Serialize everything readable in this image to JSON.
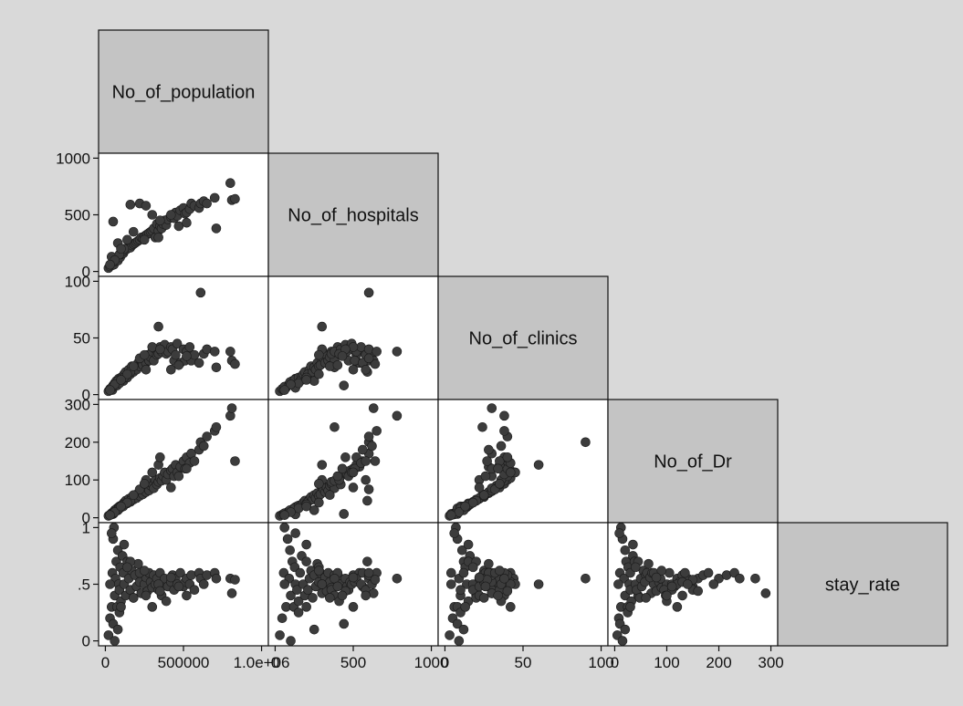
{
  "chart_data": {
    "type": "scatter",
    "kind": "scatterplot-matrix-lower",
    "variables": [
      {
        "name": "No_of_population",
        "range": [
          0,
          1000000
        ]
      },
      {
        "name": "No_of_hospitals",
        "range": [
          0,
          1000
        ]
      },
      {
        "name": "No_of_clinics",
        "range": [
          0,
          100
        ]
      },
      {
        "name": "No_of_Dr",
        "range": [
          0,
          300
        ]
      },
      {
        "name": "stay_rate",
        "range": [
          0,
          1
        ]
      }
    ],
    "x_axes": [
      {
        "variable": "No_of_population",
        "ticks": [
          0,
          500000,
          1000000
        ],
        "tick_labels": [
          "0",
          "500000",
          "1.0e+06"
        ]
      },
      {
        "variable": "No_of_hospitals",
        "ticks": [
          0,
          500,
          1000
        ],
        "tick_labels": [
          "0",
          "500",
          "1000"
        ]
      },
      {
        "variable": "No_of_clinics",
        "ticks": [
          0,
          50,
          100
        ],
        "tick_labels": [
          "0",
          "50",
          "100"
        ]
      },
      {
        "variable": "No_of_Dr",
        "ticks": [
          0,
          100,
          200,
          300
        ],
        "tick_labels": [
          "0",
          "100",
          "200",
          "300"
        ]
      }
    ],
    "y_axes": [
      {
        "variable": "No_of_hospitals",
        "ticks": [
          0,
          500,
          1000
        ],
        "tick_labels": [
          "0",
          "500",
          "1000"
        ]
      },
      {
        "variable": "No_of_clinics",
        "ticks": [
          0,
          50,
          100
        ],
        "tick_labels": [
          "0",
          "50",
          "100"
        ]
      },
      {
        "variable": "No_of_Dr",
        "ticks": [
          0,
          100,
          200,
          300
        ],
        "tick_labels": [
          "0",
          "100",
          "200",
          "300"
        ]
      },
      {
        "variable": "stay_rate",
        "ticks": [
          0,
          0.5,
          1
        ],
        "tick_labels": [
          "0",
          ".5",
          "1"
        ]
      }
    ],
    "data": {
      "No_of_population": [
        20000,
        30000,
        40000,
        45000,
        50000,
        55000,
        60000,
        65000,
        70000,
        75000,
        80000,
        85000,
        90000,
        95000,
        100000,
        110000,
        115000,
        120000,
        130000,
        140000,
        150000,
        160000,
        170000,
        180000,
        190000,
        200000,
        210000,
        220000,
        230000,
        240000,
        250000,
        260000,
        270000,
        280000,
        290000,
        300000,
        310000,
        320000,
        330000,
        340000,
        350000,
        360000,
        370000,
        380000,
        390000,
        400000,
        420000,
        430000,
        440000,
        450000,
        460000,
        480000,
        500000,
        510000,
        520000,
        540000,
        550000,
        570000,
        600000,
        610000,
        630000,
        650000,
        700000,
        710000,
        800000,
        810000,
        830000,
        50000,
        80000,
        120000,
        160000,
        40000,
        90000,
        140000,
        220000,
        260000,
        300000,
        340000,
        60000,
        180000,
        250000,
        350000,
        420000,
        470000,
        520000,
        30000,
        100000
      ],
      "No_of_hospitals": [
        30,
        45,
        70,
        55,
        80,
        60,
        100,
        90,
        110,
        120,
        95,
        130,
        140,
        125,
        150,
        170,
        160,
        180,
        190,
        200,
        220,
        210,
        230,
        240,
        250,
        260,
        270,
        280,
        300,
        290,
        310,
        320,
        330,
        340,
        350,
        360,
        380,
        300,
        420,
        360,
        400,
        380,
        420,
        450,
        410,
        460,
        480,
        500,
        470,
        520,
        490,
        540,
        560,
        510,
        520,
        550,
        600,
        580,
        560,
        600,
        620,
        600,
        650,
        380,
        780,
        630,
        640,
        440,
        250,
        200,
        590,
        130,
        150,
        280,
        600,
        580,
        500,
        300,
        100,
        350,
        280,
        450,
        500,
        400,
        430,
        60,
        200
      ],
      "No_of_clinics": [
        3,
        5,
        6,
        4,
        8,
        7,
        10,
        9,
        12,
        8,
        11,
        14,
        10,
        13,
        15,
        16,
        12,
        18,
        20,
        15,
        22,
        18,
        25,
        20,
        24,
        22,
        28,
        25,
        30,
        26,
        32,
        28,
        35,
        30,
        33,
        38,
        30,
        40,
        35,
        36,
        42,
        38,
        40,
        44,
        36,
        38,
        42,
        40,
        30,
        35,
        45,
        28,
        40,
        30,
        38,
        42,
        30,
        35,
        28,
        90,
        36,
        40,
        38,
        24,
        38,
        30,
        27,
        8,
        12,
        15,
        20,
        6,
        10,
        18,
        32,
        22,
        42,
        60,
        9,
        25,
        35,
        40,
        22,
        26,
        34,
        4,
        13
      ],
      "No_of_Dr": [
        5,
        8,
        12,
        10,
        15,
        12,
        20,
        18,
        22,
        25,
        20,
        28,
        30,
        26,
        32,
        35,
        30,
        40,
        45,
        38,
        50,
        42,
        55,
        48,
        60,
        52,
        65,
        58,
        70,
        62,
        75,
        68,
        80,
        72,
        85,
        90,
        78,
        100,
        88,
        95,
        105,
        98,
        110,
        120,
        100,
        115,
        125,
        130,
        110,
        140,
        120,
        135,
        150,
        130,
        160,
        145,
        170,
        150,
        180,
        200,
        190,
        215,
        230,
        240,
        270,
        290,
        150,
        10,
        20,
        35,
        45,
        9,
        25,
        40,
        75,
        100,
        120,
        140,
        15,
        60,
        90,
        160,
        80,
        110,
        130,
        7,
        30
      ],
      "stay_rate": [
        0.05,
        0.2,
        0.3,
        0.6,
        0.9,
        1.0,
        0.4,
        0.55,
        0.7,
        0.3,
        0.8,
        0.5,
        0.45,
        0.65,
        0.35,
        0.75,
        0.6,
        0.5,
        0.4,
        0.7,
        0.55,
        0.45,
        0.62,
        0.38,
        0.58,
        0.48,
        0.68,
        0.52,
        0.42,
        0.6,
        0.5,
        0.56,
        0.44,
        0.6,
        0.52,
        0.47,
        0.58,
        0.5,
        0.55,
        0.45,
        0.6,
        0.4,
        0.5,
        0.55,
        0.35,
        0.48,
        0.52,
        0.58,
        0.45,
        0.55,
        0.5,
        0.6,
        0.48,
        0.52,
        0.55,
        0.5,
        0.58,
        0.45,
        0.6,
        0.55,
        0.5,
        0.58,
        0.6,
        0.55,
        0.55,
        0.42,
        0.54,
        0.15,
        0.1,
        0.85,
        0.7,
        0.95,
        0.25,
        0.65,
        0.6,
        0.4,
        0.3,
        0.5,
        0.0,
        0.38,
        0.62,
        0.44,
        0.56,
        0.48,
        0.4,
        0.5,
        0.3
      ]
    }
  }
}
